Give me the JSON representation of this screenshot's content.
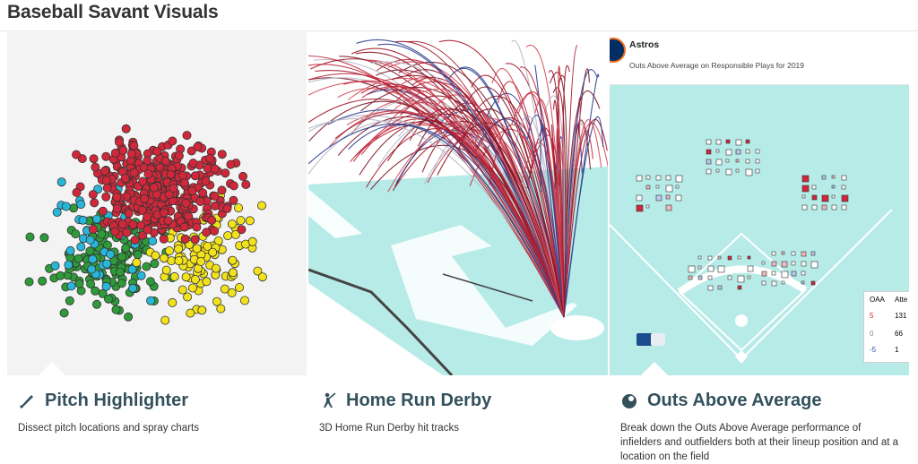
{
  "page": {
    "title": "Baseball Savant Visuals"
  },
  "cards": [
    {
      "title": "Pitch Highlighter",
      "description": "Dissect pitch locations and spray charts",
      "icon": "baseball-bat-icon"
    },
    {
      "title": "Home Run Derby",
      "description": "3D Home Run Derby hit tracks",
      "icon": "batter-icon"
    },
    {
      "title": "Outs Above Average",
      "description": "Break down the Outs Above Average performance of infielders and outfielders both at their lineup position and at a location on the field",
      "icon": "baseball-glove-icon"
    }
  ],
  "oaa_panel": {
    "team": "Astros",
    "subtitle": "Outs Above Average on Responsible Plays for 2019",
    "table_headers": [
      "OAA",
      "Atte"
    ],
    "rows": [
      {
        "oaa": "5",
        "attempts": "131"
      },
      {
        "oaa": "0",
        "attempts": "66"
      },
      {
        "oaa": "-5",
        "attempts": "1"
      }
    ]
  },
  "colors": {
    "title": "#333333",
    "card_title": "#33515d",
    "pitch_red": "#d0283a",
    "pitch_green": "#2e9a3a",
    "pitch_yellow": "#f2e21c",
    "pitch_cyan": "#29b6d9",
    "field_teal": "#b6ebe7"
  }
}
